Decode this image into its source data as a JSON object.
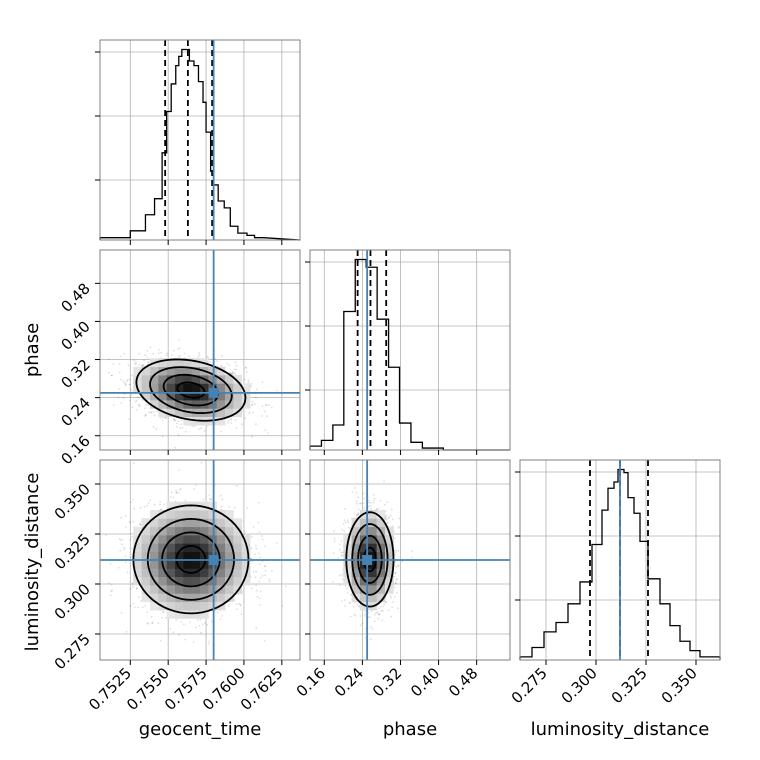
{
  "chart_data": {
    "type": "corner",
    "parameters": [
      {
        "name": "geocent_time",
        "label": "geocent_time",
        "range": [
          0.7505,
          0.7637
        ],
        "ticks": [
          0.7525,
          0.755,
          0.7575,
          0.76,
          0.7625
        ],
        "tick_labels": [
          "0.7525",
          "0.7550",
          "0.7575",
          "0.7600",
          "0.7625"
        ],
        "truth": 0.758,
        "quantiles": [
          0.7548,
          0.7563,
          0.7579
        ],
        "hist_edges": [
          0.7505,
          0.7525,
          0.7535,
          0.7541,
          0.7546,
          0.7549,
          0.7552,
          0.7555,
          0.7557,
          0.7559,
          0.7562,
          0.7564,
          0.7567,
          0.757,
          0.7573,
          0.7575,
          0.7578,
          0.758,
          0.7583,
          0.7587,
          0.7591,
          0.7596,
          0.7602,
          0.7607,
          0.7613,
          0.7637
        ],
        "hist_counts": [
          1,
          4,
          11,
          18,
          38,
          56,
          68,
          76,
          80,
          83,
          83,
          78,
          76,
          69,
          60,
          47,
          30,
          24,
          17,
          14,
          6,
          3,
          2,
          1
        ]
      },
      {
        "name": "phase",
        "label": "phase",
        "range": [
          0.13,
          0.55
        ],
        "ticks": [
          0.16,
          0.24,
          0.32,
          0.4,
          0.48
        ],
        "tick_labels": [
          "0.16",
          "0.24",
          "0.32",
          "0.40",
          "0.48"
        ],
        "truth": 0.25,
        "quantiles": [
          0.23,
          0.257,
          0.29
        ],
        "hist_edges": [
          0.13,
          0.154,
          0.178,
          0.201,
          0.225,
          0.248,
          0.271,
          0.295,
          0.318,
          0.342,
          0.366,
          0.41,
          0.55
        ],
        "hist_counts": [
          2,
          5,
          13,
          72,
          99,
          95,
          68,
          43,
          14,
          4,
          1,
          0
        ]
      },
      {
        "name": "luminosity_distance",
        "label": "luminosity_distance",
        "range": [
          0.262,
          0.362
        ],
        "ticks": [
          0.275,
          0.3,
          0.325,
          0.35
        ],
        "tick_labels": [
          "0.275",
          "0.300",
          "0.325",
          "0.350"
        ],
        "truth": 0.312,
        "quantiles": [
          0.297,
          0.312,
          0.326
        ],
        "hist_edges": [
          0.262,
          0.268,
          0.274,
          0.28,
          0.286,
          0.292,
          0.298,
          0.303,
          0.306,
          0.309,
          0.311,
          0.314,
          0.316,
          0.319,
          0.322,
          0.326,
          0.332,
          0.337,
          0.342,
          0.347,
          0.352,
          0.362
        ],
        "hist_counts": [
          1,
          4,
          9,
          12,
          18,
          25,
          37,
          48,
          55,
          57,
          61,
          60,
          52,
          47,
          38,
          26,
          18,
          11,
          6,
          3,
          1
        ]
      }
    ],
    "pairs": [
      {
        "x": "geocent_time",
        "y": "phase",
        "center": [
          0.7565,
          0.2558
        ],
        "sigma": [
          0.0018,
          0.0322
        ],
        "rho": -0.25,
        "truth": [
          0.758,
          0.25
        ]
      },
      {
        "x": "geocent_time",
        "y": "luminosity_distance",
        "center": [
          0.7565,
          0.3123
        ],
        "sigma": [
          0.0019,
          0.0135
        ],
        "rho": 0.0,
        "truth": [
          0.758,
          0.312
        ]
      },
      {
        "x": "phase",
        "y": "luminosity_distance",
        "center": [
          0.2558,
          0.3123
        ],
        "sigma": [
          0.0248,
          0.0118
        ],
        "rho": 0.0,
        "truth": [
          0.25,
          0.312
        ]
      }
    ],
    "truth_color": "#4682b4",
    "quantile_color": "#000000",
    "grid": true
  }
}
